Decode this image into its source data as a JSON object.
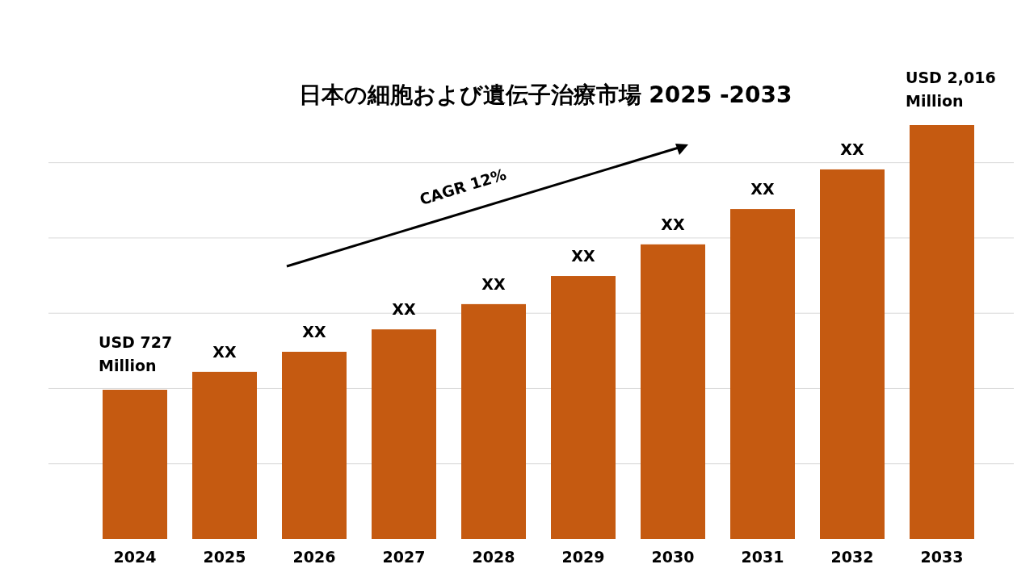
{
  "chart_data": {
    "type": "bar",
    "title": "日本の細胞および遺伝子治療市場 2025 -2033",
    "grid": "y",
    "categories": [
      "2024",
      "2025",
      "2026",
      "2027",
      "2028",
      "2029",
      "2030",
      "2031",
      "2032",
      "2033"
    ],
    "values": [
      727,
      814,
      912,
      1021,
      1144,
      1281,
      1435,
      1607,
      1800,
      2016
    ],
    "value_labels": [
      "USD 727 Million",
      "XX",
      "XX",
      "XX",
      "XX",
      "XX",
      "XX",
      "XX",
      "XX",
      "USD 2,016 Million"
    ],
    "color": "#c55a11",
    "annotations": [
      "CAGR 12%"
    ]
  }
}
